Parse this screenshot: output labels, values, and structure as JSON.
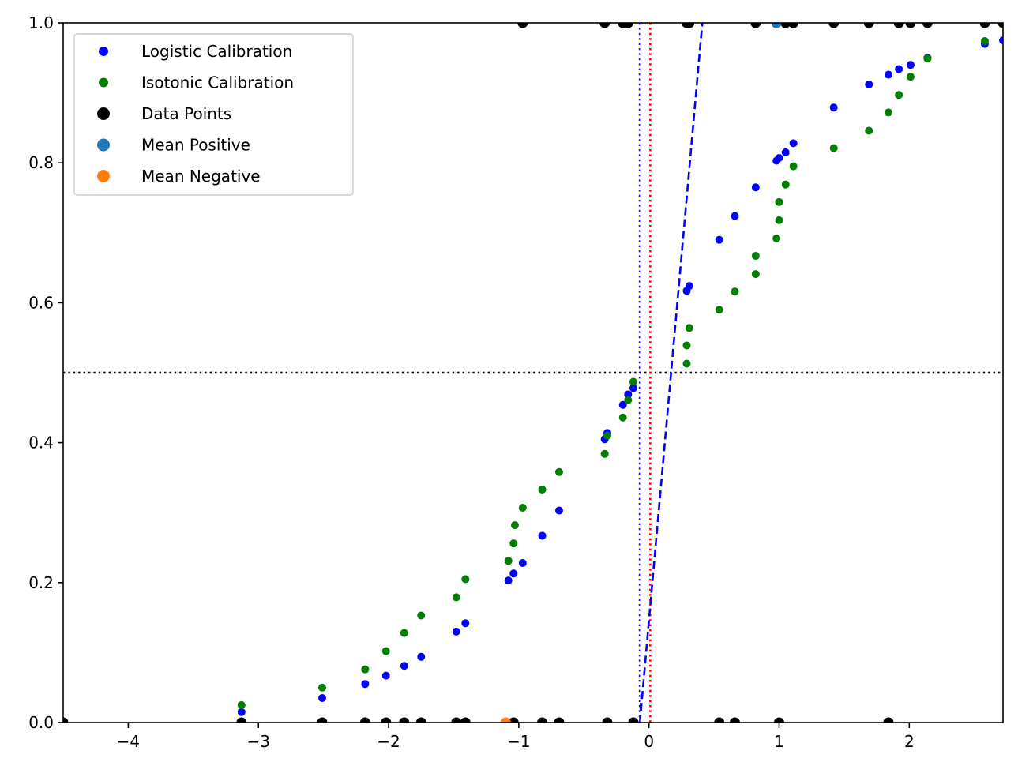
{
  "chart_data": {
    "type": "scatter",
    "title": "",
    "xlabel": "",
    "ylabel": "",
    "xlim": [
      -4.5,
      2.72
    ],
    "ylim": [
      0.0,
      1.0
    ],
    "grid": false,
    "legend_placement": "upper-left",
    "x_ticks": [
      {
        "value": -4,
        "label": "−4"
      },
      {
        "value": -3,
        "label": "−3"
      },
      {
        "value": -2,
        "label": "−2"
      },
      {
        "value": -1,
        "label": "−1"
      },
      {
        "value": 0,
        "label": "0"
      },
      {
        "value": 1,
        "label": "1"
      },
      {
        "value": 2,
        "label": "2"
      }
    ],
    "y_ticks": [
      {
        "value": 0.0,
        "label": "0.0"
      },
      {
        "value": 0.2,
        "label": "0.2"
      },
      {
        "value": 0.4,
        "label": "0.4"
      },
      {
        "value": 0.6,
        "label": "0.6"
      },
      {
        "value": 0.8,
        "label": "0.8"
      },
      {
        "value": 1.0,
        "label": "1.0"
      }
    ],
    "series": [
      {
        "name": "Logistic Calibration",
        "color": "#0000ff",
        "marker": "small-circle",
        "points": [
          [
            -3.13,
            0.015
          ],
          [
            -2.51,
            0.035
          ],
          [
            -2.18,
            0.055
          ],
          [
            -2.02,
            0.067
          ],
          [
            -1.88,
            0.081
          ],
          [
            -1.75,
            0.094
          ],
          [
            -1.48,
            0.13
          ],
          [
            -1.41,
            0.142
          ],
          [
            -1.08,
            0.203
          ],
          [
            -1.04,
            0.213
          ],
          [
            -0.97,
            0.228
          ],
          [
            -0.82,
            0.267
          ],
          [
            -0.69,
            0.303
          ],
          [
            -0.34,
            0.405
          ],
          [
            -0.32,
            0.414
          ],
          [
            -0.2,
            0.454
          ],
          [
            -0.16,
            0.469
          ],
          [
            -0.12,
            0.478
          ],
          [
            0.29,
            0.617
          ],
          [
            0.31,
            0.624
          ],
          [
            0.54,
            0.69
          ],
          [
            0.66,
            0.724
          ],
          [
            0.82,
            0.765
          ],
          [
            0.98,
            0.803
          ],
          [
            1.0,
            0.807
          ],
          [
            1.05,
            0.815
          ],
          [
            1.11,
            0.828
          ],
          [
            1.42,
            0.879
          ],
          [
            1.69,
            0.912
          ],
          [
            1.84,
            0.926
          ],
          [
            1.92,
            0.934
          ],
          [
            2.01,
            0.94
          ],
          [
            2.14,
            0.95
          ],
          [
            2.58,
            0.97
          ],
          [
            2.72,
            0.975
          ]
        ]
      },
      {
        "name": "Isotonic Calibration",
        "color": "#008000",
        "marker": "small-circle",
        "points": [
          [
            -3.13,
            0.025
          ],
          [
            -2.51,
            0.05
          ],
          [
            -2.18,
            0.076
          ],
          [
            -2.02,
            0.102
          ],
          [
            -1.88,
            0.128
          ],
          [
            -1.75,
            0.153
          ],
          [
            -1.48,
            0.179
          ],
          [
            -1.41,
            0.205
          ],
          [
            -1.08,
            0.231
          ],
          [
            -1.04,
            0.256
          ],
          [
            -1.03,
            0.282
          ],
          [
            -0.97,
            0.307
          ],
          [
            -0.82,
            0.333
          ],
          [
            -0.69,
            0.358
          ],
          [
            -0.34,
            0.384
          ],
          [
            -0.32,
            0.41
          ],
          [
            -0.2,
            0.436
          ],
          [
            -0.16,
            0.461
          ],
          [
            -0.12,
            0.487
          ],
          [
            0.29,
            0.513
          ],
          [
            0.29,
            0.539
          ],
          [
            0.31,
            0.564
          ],
          [
            0.54,
            0.59
          ],
          [
            0.66,
            0.616
          ],
          [
            0.82,
            0.641
          ],
          [
            0.82,
            0.667
          ],
          [
            0.98,
            0.692
          ],
          [
            1.0,
            0.718
          ],
          [
            1.0,
            0.744
          ],
          [
            1.05,
            0.769
          ],
          [
            1.11,
            0.795
          ],
          [
            1.42,
            0.821
          ],
          [
            1.69,
            0.846
          ],
          [
            1.84,
            0.872
          ],
          [
            1.92,
            0.897
          ],
          [
            2.01,
            0.923
          ],
          [
            2.14,
            0.949
          ],
          [
            2.58,
            0.974
          ]
        ]
      },
      {
        "name": "Data Points",
        "color": "#000000",
        "marker": "circle",
        "points": [
          [
            -4.5,
            0
          ],
          [
            -3.13,
            0
          ],
          [
            -2.51,
            0
          ],
          [
            -2.18,
            0
          ],
          [
            -2.02,
            0
          ],
          [
            -1.88,
            0
          ],
          [
            -1.75,
            0
          ],
          [
            -1.48,
            0
          ],
          [
            -1.41,
            0
          ],
          [
            -1.04,
            0
          ],
          [
            -0.82,
            0
          ],
          [
            -0.69,
            0
          ],
          [
            -0.32,
            0
          ],
          [
            -0.12,
            0
          ],
          [
            0.54,
            0
          ],
          [
            0.66,
            0
          ],
          [
            1.0,
            0
          ],
          [
            1.84,
            0
          ],
          [
            -0.97,
            1
          ],
          [
            -0.34,
            1
          ],
          [
            -0.2,
            1
          ],
          [
            -0.16,
            1
          ],
          [
            0.29,
            1
          ],
          [
            0.31,
            1
          ],
          [
            0.82,
            1
          ],
          [
            0.98,
            1
          ],
          [
            1.05,
            1
          ],
          [
            1.11,
            1
          ],
          [
            1.42,
            1
          ],
          [
            1.69,
            1
          ],
          [
            1.92,
            1
          ],
          [
            2.01,
            1
          ],
          [
            2.14,
            1
          ],
          [
            2.58,
            1
          ],
          [
            2.72,
            1
          ]
        ]
      },
      {
        "name": "Mean Positive",
        "color": "#1f77b4",
        "marker": "circle",
        "points": [
          [
            0.98,
            1.0
          ]
        ]
      },
      {
        "name": "Mean Negative",
        "color": "#ff7f0e",
        "marker": "circle",
        "points": [
          [
            -1.1,
            0.0
          ]
        ]
      }
    ],
    "reference_lines": [
      {
        "kind": "horizontal",
        "y": 0.5,
        "color": "#000000",
        "style": "dotted"
      },
      {
        "kind": "vertical",
        "x": -0.07,
        "color": "#0000ff",
        "style": "dotted"
      },
      {
        "kind": "vertical",
        "x": 0.01,
        "color": "#ff0000",
        "style": "dotted"
      },
      {
        "kind": "segment",
        "x1": -0.07,
        "y1": 0.0,
        "x2": 0.41,
        "y2": 1.0,
        "color": "#0000ff",
        "style": "dashed"
      }
    ]
  }
}
